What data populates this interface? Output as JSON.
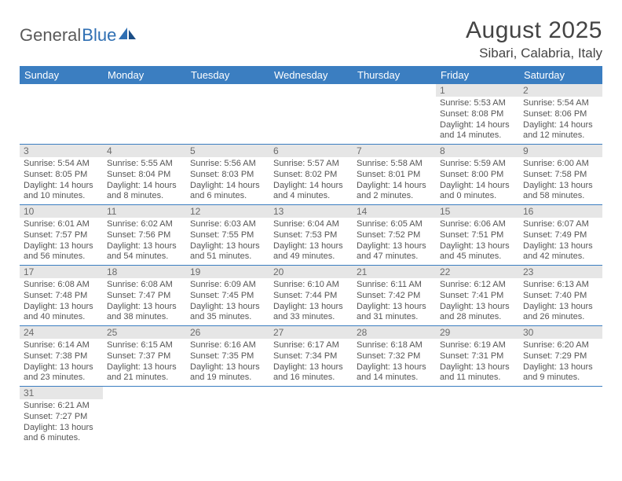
{
  "logo": {
    "word1": "General",
    "word2": "Blue"
  },
  "title": "August 2025",
  "location": "Sibari, Calabria, Italy",
  "colors": {
    "header_bg": "#3b7ec1",
    "header_text": "#ffffff",
    "daynum_bg": "#e6e6e6",
    "daynum_text": "#6b6b6b",
    "body_text": "#555555",
    "rule": "#3b7ec1",
    "logo_gray": "#5a5a5a",
    "logo_blue": "#2f6fb3"
  },
  "weekdays": [
    "Sunday",
    "Monday",
    "Tuesday",
    "Wednesday",
    "Thursday",
    "Friday",
    "Saturday"
  ],
  "weeks": [
    [
      {
        "n": "",
        "rise": "",
        "set": "",
        "day": ""
      },
      {
        "n": "",
        "rise": "",
        "set": "",
        "day": ""
      },
      {
        "n": "",
        "rise": "",
        "set": "",
        "day": ""
      },
      {
        "n": "",
        "rise": "",
        "set": "",
        "day": ""
      },
      {
        "n": "",
        "rise": "",
        "set": "",
        "day": ""
      },
      {
        "n": "1",
        "rise": "Sunrise: 5:53 AM",
        "set": "Sunset: 8:08 PM",
        "day": "Daylight: 14 hours and 14 minutes."
      },
      {
        "n": "2",
        "rise": "Sunrise: 5:54 AM",
        "set": "Sunset: 8:06 PM",
        "day": "Daylight: 14 hours and 12 minutes."
      }
    ],
    [
      {
        "n": "3",
        "rise": "Sunrise: 5:54 AM",
        "set": "Sunset: 8:05 PM",
        "day": "Daylight: 14 hours and 10 minutes."
      },
      {
        "n": "4",
        "rise": "Sunrise: 5:55 AM",
        "set": "Sunset: 8:04 PM",
        "day": "Daylight: 14 hours and 8 minutes."
      },
      {
        "n": "5",
        "rise": "Sunrise: 5:56 AM",
        "set": "Sunset: 8:03 PM",
        "day": "Daylight: 14 hours and 6 minutes."
      },
      {
        "n": "6",
        "rise": "Sunrise: 5:57 AM",
        "set": "Sunset: 8:02 PM",
        "day": "Daylight: 14 hours and 4 minutes."
      },
      {
        "n": "7",
        "rise": "Sunrise: 5:58 AM",
        "set": "Sunset: 8:01 PM",
        "day": "Daylight: 14 hours and 2 minutes."
      },
      {
        "n": "8",
        "rise": "Sunrise: 5:59 AM",
        "set": "Sunset: 8:00 PM",
        "day": "Daylight: 14 hours and 0 minutes."
      },
      {
        "n": "9",
        "rise": "Sunrise: 6:00 AM",
        "set": "Sunset: 7:58 PM",
        "day": "Daylight: 13 hours and 58 minutes."
      }
    ],
    [
      {
        "n": "10",
        "rise": "Sunrise: 6:01 AM",
        "set": "Sunset: 7:57 PM",
        "day": "Daylight: 13 hours and 56 minutes."
      },
      {
        "n": "11",
        "rise": "Sunrise: 6:02 AM",
        "set": "Sunset: 7:56 PM",
        "day": "Daylight: 13 hours and 54 minutes."
      },
      {
        "n": "12",
        "rise": "Sunrise: 6:03 AM",
        "set": "Sunset: 7:55 PM",
        "day": "Daylight: 13 hours and 51 minutes."
      },
      {
        "n": "13",
        "rise": "Sunrise: 6:04 AM",
        "set": "Sunset: 7:53 PM",
        "day": "Daylight: 13 hours and 49 minutes."
      },
      {
        "n": "14",
        "rise": "Sunrise: 6:05 AM",
        "set": "Sunset: 7:52 PM",
        "day": "Daylight: 13 hours and 47 minutes."
      },
      {
        "n": "15",
        "rise": "Sunrise: 6:06 AM",
        "set": "Sunset: 7:51 PM",
        "day": "Daylight: 13 hours and 45 minutes."
      },
      {
        "n": "16",
        "rise": "Sunrise: 6:07 AM",
        "set": "Sunset: 7:49 PM",
        "day": "Daylight: 13 hours and 42 minutes."
      }
    ],
    [
      {
        "n": "17",
        "rise": "Sunrise: 6:08 AM",
        "set": "Sunset: 7:48 PM",
        "day": "Daylight: 13 hours and 40 minutes."
      },
      {
        "n": "18",
        "rise": "Sunrise: 6:08 AM",
        "set": "Sunset: 7:47 PM",
        "day": "Daylight: 13 hours and 38 minutes."
      },
      {
        "n": "19",
        "rise": "Sunrise: 6:09 AM",
        "set": "Sunset: 7:45 PM",
        "day": "Daylight: 13 hours and 35 minutes."
      },
      {
        "n": "20",
        "rise": "Sunrise: 6:10 AM",
        "set": "Sunset: 7:44 PM",
        "day": "Daylight: 13 hours and 33 minutes."
      },
      {
        "n": "21",
        "rise": "Sunrise: 6:11 AM",
        "set": "Sunset: 7:42 PM",
        "day": "Daylight: 13 hours and 31 minutes."
      },
      {
        "n": "22",
        "rise": "Sunrise: 6:12 AM",
        "set": "Sunset: 7:41 PM",
        "day": "Daylight: 13 hours and 28 minutes."
      },
      {
        "n": "23",
        "rise": "Sunrise: 6:13 AM",
        "set": "Sunset: 7:40 PM",
        "day": "Daylight: 13 hours and 26 minutes."
      }
    ],
    [
      {
        "n": "24",
        "rise": "Sunrise: 6:14 AM",
        "set": "Sunset: 7:38 PM",
        "day": "Daylight: 13 hours and 23 minutes."
      },
      {
        "n": "25",
        "rise": "Sunrise: 6:15 AM",
        "set": "Sunset: 7:37 PM",
        "day": "Daylight: 13 hours and 21 minutes."
      },
      {
        "n": "26",
        "rise": "Sunrise: 6:16 AM",
        "set": "Sunset: 7:35 PM",
        "day": "Daylight: 13 hours and 19 minutes."
      },
      {
        "n": "27",
        "rise": "Sunrise: 6:17 AM",
        "set": "Sunset: 7:34 PM",
        "day": "Daylight: 13 hours and 16 minutes."
      },
      {
        "n": "28",
        "rise": "Sunrise: 6:18 AM",
        "set": "Sunset: 7:32 PM",
        "day": "Daylight: 13 hours and 14 minutes."
      },
      {
        "n": "29",
        "rise": "Sunrise: 6:19 AM",
        "set": "Sunset: 7:31 PM",
        "day": "Daylight: 13 hours and 11 minutes."
      },
      {
        "n": "30",
        "rise": "Sunrise: 6:20 AM",
        "set": "Sunset: 7:29 PM",
        "day": "Daylight: 13 hours and 9 minutes."
      }
    ],
    [
      {
        "n": "31",
        "rise": "Sunrise: 6:21 AM",
        "set": "Sunset: 7:27 PM",
        "day": "Daylight: 13 hours and 6 minutes."
      },
      {
        "n": "",
        "rise": "",
        "set": "",
        "day": ""
      },
      {
        "n": "",
        "rise": "",
        "set": "",
        "day": ""
      },
      {
        "n": "",
        "rise": "",
        "set": "",
        "day": ""
      },
      {
        "n": "",
        "rise": "",
        "set": "",
        "day": ""
      },
      {
        "n": "",
        "rise": "",
        "set": "",
        "day": ""
      },
      {
        "n": "",
        "rise": "",
        "set": "",
        "day": ""
      }
    ]
  ]
}
